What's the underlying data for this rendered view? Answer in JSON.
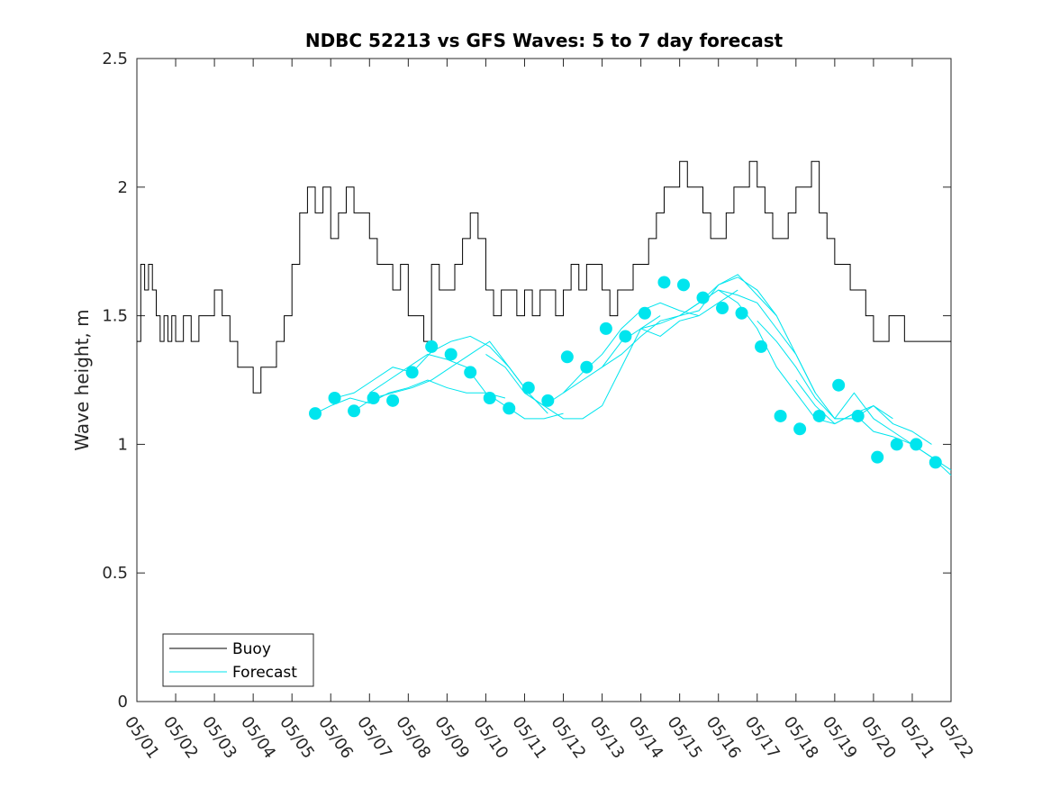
{
  "chart_data": {
    "type": "line",
    "title": "NDBC 52213 vs GFS Waves: 5 to 7 day forecast",
    "xlabel": "",
    "ylabel": "Wave height, m",
    "xlim": [
      0,
      21
    ],
    "ylim": [
      0,
      2.5
    ],
    "x_ticks": [
      "05/01",
      "05/02",
      "05/03",
      "05/04",
      "05/05",
      "05/06",
      "05/07",
      "05/08",
      "05/09",
      "05/10",
      "05/11",
      "05/12",
      "05/13",
      "05/14",
      "05/15",
      "05/16",
      "05/17",
      "05/18",
      "05/19",
      "05/20",
      "05/21",
      "05/22"
    ],
    "y_ticks": [
      "0",
      "0.5",
      "1",
      "1.5",
      "2",
      "2.5"
    ],
    "legend": {
      "position": "bottom-left",
      "entries": [
        "Buoy",
        "Forecast"
      ]
    },
    "colors": {
      "buoy": "#000000",
      "forecast": "#00e5ee",
      "markers": "#00e5ee"
    },
    "buoy": {
      "name": "Buoy",
      "x": [
        0.0,
        0.1,
        0.2,
        0.3,
        0.4,
        0.5,
        0.6,
        0.7,
        0.8,
        0.9,
        1.0,
        1.2,
        1.4,
        1.6,
        1.8,
        2.0,
        2.2,
        2.4,
        2.6,
        2.8,
        3.0,
        3.2,
        3.4,
        3.6,
        3.8,
        4.0,
        4.2,
        4.4,
        4.6,
        4.8,
        5.0,
        5.2,
        5.4,
        5.6,
        5.8,
        6.0,
        6.2,
        6.4,
        6.6,
        6.8,
        7.0,
        7.2,
        7.4,
        7.6,
        7.8,
        8.0,
        8.2,
        8.4,
        8.6,
        8.8,
        9.0,
        9.2,
        9.4,
        9.6,
        9.8,
        10.0,
        10.2,
        10.4,
        10.6,
        10.8,
        11.0,
        11.2,
        11.4,
        11.6,
        11.8,
        12.0,
        12.2,
        12.4,
        12.6,
        12.8,
        13.0,
        13.2,
        13.4,
        13.6,
        13.8,
        14.0,
        14.2,
        14.4,
        14.6,
        14.8,
        15.0,
        15.2,
        15.4,
        15.6,
        15.8,
        16.0,
        16.2,
        16.4,
        16.6,
        16.8,
        17.0,
        17.2,
        17.4,
        17.6,
        17.8,
        18.0,
        18.2,
        18.4,
        18.6,
        18.8,
        19.0,
        19.2,
        19.4,
        19.6,
        19.8,
        20.0,
        20.2,
        20.4,
        20.6,
        20.8,
        21.0
      ],
      "y": [
        1.4,
        1.7,
        1.6,
        1.7,
        1.6,
        1.5,
        1.4,
        1.5,
        1.4,
        1.5,
        1.4,
        1.5,
        1.4,
        1.5,
        1.5,
        1.6,
        1.5,
        1.4,
        1.3,
        1.3,
        1.2,
        1.3,
        1.3,
        1.4,
        1.5,
        1.7,
        1.9,
        2.0,
        1.9,
        2.0,
        1.8,
        1.9,
        2.0,
        1.9,
        1.9,
        1.8,
        1.7,
        1.7,
        1.6,
        1.7,
        1.5,
        1.5,
        1.4,
        1.7,
        1.6,
        1.6,
        1.7,
        1.8,
        1.9,
        1.8,
        1.6,
        1.5,
        1.6,
        1.6,
        1.5,
        1.6,
        1.5,
        1.6,
        1.6,
        1.5,
        1.6,
        1.7,
        1.6,
        1.7,
        1.7,
        1.6,
        1.5,
        1.6,
        1.6,
        1.7,
        1.7,
        1.8,
        1.9,
        2.0,
        2.0,
        2.1,
        2.0,
        2.0,
        1.9,
        1.8,
        1.8,
        1.9,
        2.0,
        2.0,
        2.1,
        2.0,
        1.9,
        1.8,
        1.8,
        1.9,
        2.0,
        2.0,
        2.1,
        1.9,
        1.8,
        1.7,
        1.7,
        1.6,
        1.6,
        1.5,
        1.4,
        1.4,
        1.5,
        1.5,
        1.4,
        1.4,
        1.4,
        1.4,
        1.4,
        1.4,
        1.4
      ],
      "note": ""
    },
    "forecast_runs": [
      {
        "x": [
          4.6,
          5.0,
          5.5,
          6.0,
          6.5,
          7.0,
          7.5,
          8.0,
          8.5,
          9.0,
          9.5
        ],
        "y": [
          1.12,
          1.15,
          1.18,
          1.16,
          1.2,
          1.22,
          1.25,
          1.22,
          1.2,
          1.2,
          1.18
        ]
      },
      {
        "x": [
          5.1,
          5.6,
          6.1,
          6.6,
          7.1,
          7.6,
          8.1,
          8.6,
          9.1,
          9.6,
          10.1
        ],
        "y": [
          1.18,
          1.2,
          1.25,
          1.3,
          1.28,
          1.36,
          1.4,
          1.42,
          1.38,
          1.3,
          1.2
        ]
      },
      {
        "x": [
          5.6,
          6.1,
          6.6,
          7.1,
          7.6,
          8.1,
          8.6,
          9.1,
          9.6,
          10.1,
          10.6
        ],
        "y": [
          1.13,
          1.18,
          1.2,
          1.22,
          1.25,
          1.3,
          1.35,
          1.4,
          1.3,
          1.2,
          1.12
        ]
      },
      {
        "x": [
          6.0,
          6.5,
          7.0,
          7.5,
          8.0,
          8.5,
          9.0,
          9.5,
          10.0,
          10.5,
          11.0
        ],
        "y": [
          1.2,
          1.25,
          1.3,
          1.35,
          1.33,
          1.3,
          1.2,
          1.15,
          1.1,
          1.1,
          1.12
        ]
      },
      {
        "x": [
          9.0,
          9.5,
          10.0,
          10.5,
          11.0,
          11.5,
          12.0,
          12.5,
          13.0,
          13.5
        ],
        "y": [
          1.35,
          1.3,
          1.2,
          1.15,
          1.1,
          1.1,
          1.15,
          1.3,
          1.45,
          1.5
        ]
      },
      {
        "x": [
          10.0,
          10.5,
          11.0,
          11.5,
          12.0,
          12.5,
          13.0,
          13.5,
          14.0,
          14.5
        ],
        "y": [
          1.2,
          1.15,
          1.2,
          1.28,
          1.35,
          1.45,
          1.52,
          1.55,
          1.52,
          1.5
        ]
      },
      {
        "x": [
          11.0,
          11.5,
          12.0,
          12.5,
          13.0,
          13.5,
          14.0,
          14.5,
          15.0,
          15.5
        ],
        "y": [
          1.2,
          1.25,
          1.3,
          1.4,
          1.45,
          1.42,
          1.48,
          1.5,
          1.55,
          1.6
        ]
      },
      {
        "x": [
          12.0,
          12.5,
          13.0,
          13.5,
          14.0,
          14.5,
          15.0,
          15.5,
          16.0,
          16.5
        ],
        "y": [
          1.3,
          1.35,
          1.42,
          1.48,
          1.5,
          1.55,
          1.62,
          1.65,
          1.6,
          1.5
        ]
      },
      {
        "x": [
          13.0,
          13.5,
          14.0,
          14.5,
          15.0,
          15.5,
          16.0,
          16.5,
          17.0,
          17.5
        ],
        "y": [
          1.45,
          1.47,
          1.5,
          1.55,
          1.6,
          1.58,
          1.55,
          1.45,
          1.35,
          1.2
        ]
      },
      {
        "x": [
          14.0,
          14.5,
          15.0,
          15.5,
          16.0,
          16.5,
          17.0,
          17.5,
          18.0,
          18.5
        ],
        "y": [
          1.5,
          1.52,
          1.62,
          1.66,
          1.58,
          1.5,
          1.35,
          1.2,
          1.1,
          1.1
        ]
      },
      {
        "x": [
          15.0,
          15.5,
          16.0,
          16.5,
          17.0,
          17.5,
          18.0,
          18.5,
          19.0,
          19.5
        ],
        "y": [
          1.6,
          1.55,
          1.45,
          1.3,
          1.2,
          1.1,
          1.08,
          1.12,
          1.15,
          1.1
        ]
      },
      {
        "x": [
          16.0,
          16.5,
          17.0,
          17.5,
          18.0,
          18.5,
          19.0,
          19.5,
          20.0,
          20.5
        ],
        "y": [
          1.48,
          1.4,
          1.3,
          1.18,
          1.1,
          1.1,
          1.15,
          1.08,
          1.05,
          1.0
        ]
      },
      {
        "x": [
          17.0,
          17.5,
          18.0,
          18.5,
          19.0,
          19.5,
          20.0,
          20.5,
          21.0
        ],
        "y": [
          1.25,
          1.15,
          1.08,
          1.12,
          1.05,
          1.03,
          1.0,
          0.95,
          0.9
        ]
      },
      {
        "x": [
          18.0,
          18.5,
          19.0,
          19.5,
          20.0,
          20.5,
          21.0
        ],
        "y": [
          1.1,
          1.2,
          1.1,
          1.05,
          1.0,
          0.95,
          0.88
        ]
      }
    ],
    "forecast_points": {
      "name": "Forecast",
      "x": [
        4.6,
        5.1,
        5.6,
        6.1,
        6.6,
        7.1,
        7.6,
        8.1,
        8.6,
        9.1,
        9.6,
        10.1,
        10.6,
        11.1,
        11.6,
        12.1,
        12.6,
        13.1,
        13.6,
        14.1,
        14.6,
        15.1,
        15.6,
        16.1,
        16.6,
        17.1,
        17.6,
        18.1,
        18.6,
        19.1,
        19.6,
        20.1,
        20.6
      ],
      "y": [
        1.12,
        1.18,
        1.13,
        1.18,
        1.17,
        1.28,
        1.38,
        1.35,
        1.28,
        1.18,
        1.14,
        1.22,
        1.17,
        1.34,
        1.3,
        1.45,
        1.42,
        1.51,
        1.63,
        1.62,
        1.57,
        1.53,
        1.51,
        1.38,
        1.11,
        1.06,
        1.11,
        1.23,
        1.11,
        0.95,
        1.0,
        1.0,
        0.93
      ]
    }
  }
}
